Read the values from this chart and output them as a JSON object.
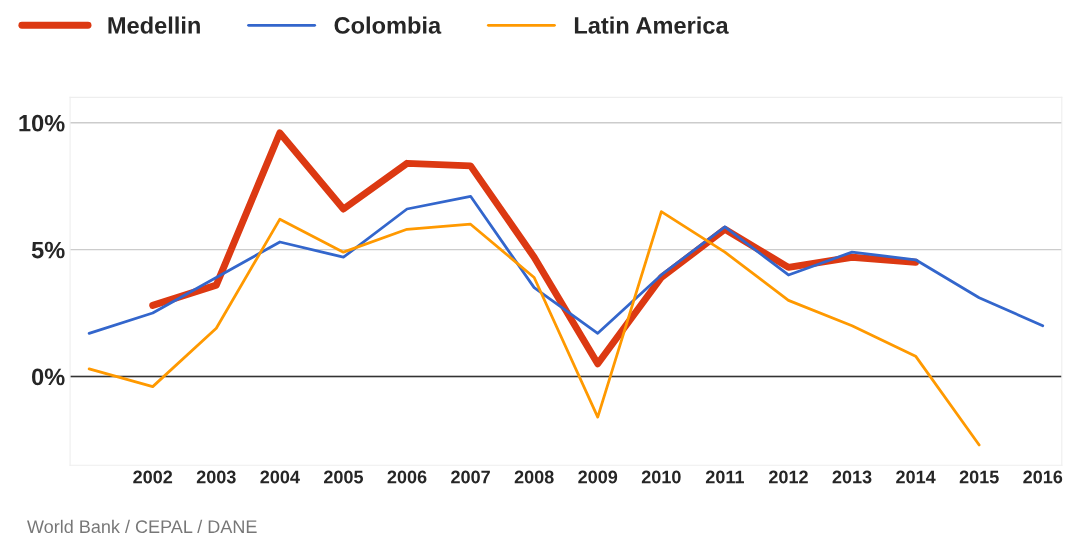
{
  "chart_data": {
    "type": "line",
    "categories": [
      null,
      "2002",
      "2003",
      "2004",
      "2005",
      "2006",
      "2007",
      "2008",
      "2009",
      "2010",
      "2011",
      "2012",
      "2013",
      "2014",
      "2015",
      "2016"
    ],
    "series": [
      {
        "name": "Medellin",
        "color": "#dc3912",
        "values": [
          null,
          2.8,
          3.6,
          9.6,
          6.6,
          8.4,
          8.3,
          4.7,
          0.5,
          3.9,
          5.8,
          4.3,
          4.7,
          4.5,
          null,
          null
        ]
      },
      {
        "name": "Colombia",
        "color": "#3366cc",
        "values": [
          1.7,
          2.5,
          3.9,
          5.3,
          4.7,
          6.6,
          7.1,
          3.5,
          1.7,
          4.0,
          5.9,
          4.0,
          4.9,
          4.6,
          3.1,
          2.0
        ]
      },
      {
        "name": "Latin America",
        "color": "#ff9900",
        "values": [
          0.3,
          -0.4,
          1.9,
          6.2,
          4.9,
          5.8,
          6.0,
          3.9,
          -1.6,
          6.5,
          4.9,
          3.0,
          2.0,
          0.8,
          -2.7,
          null
        ]
      }
    ],
    "ylim": [
      -3.5,
      11
    ],
    "yticks": [
      {
        "value": 0,
        "label": "0%"
      },
      {
        "value": 5,
        "label": "5%"
      },
      {
        "value": 10,
        "label": "10%"
      }
    ],
    "grid": "y",
    "legend": "top left",
    "marker": "none",
    "line_style": "solid",
    "ref_lines": [
      {
        "axis": "y",
        "value": 0,
        "color": "#333333"
      }
    ],
    "annotations": [
      "World Bank / CEPAL / DANE"
    ]
  }
}
